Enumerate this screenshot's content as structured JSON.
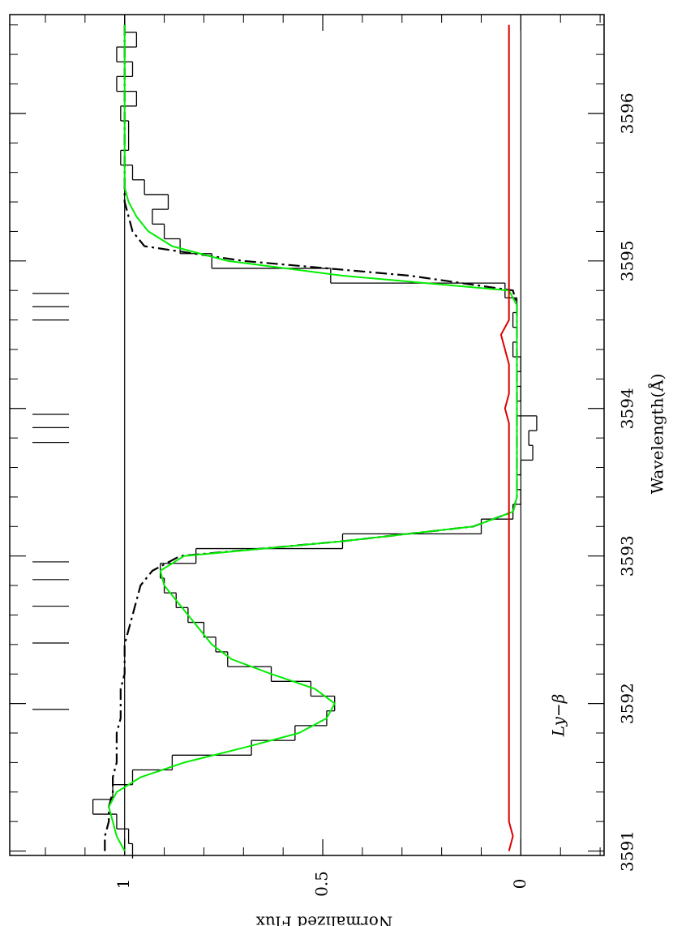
{
  "chart_data": {
    "type": "line",
    "xlabel": "Wavelength(Å)",
    "ylabel": "Normalized Flux",
    "annotation": "Ly−β",
    "xlim": [
      3590.97,
      3596.67
    ],
    "xticks": [
      3591,
      3592,
      3593,
      3594,
      3595,
      3596
    ],
    "xminorticks": [
      3591.2,
      3591.4,
      3591.6,
      3591.8,
      3592.2,
      3592.4,
      3592.6,
      3592.8,
      3593.2,
      3593.4,
      3593.6,
      3593.8,
      3594.2,
      3594.4,
      3594.6,
      3594.8,
      3595.2,
      3595.4,
      3595.6,
      3595.8,
      3596.2,
      3596.4,
      3596.6
    ],
    "ylim": [
      -0.21,
      1.29
    ],
    "yticks": [
      1,
      0.5,
      0
    ],
    "yminorticks": [
      1.2,
      1.1,
      0.9,
      0.8,
      0.7,
      0.6,
      0.4,
      0.3,
      0.2,
      0.1,
      -0.1,
      -0.2
    ],
    "hlines": [
      1,
      0
    ],
    "component_lines": [
      3591.96,
      3592.41,
      3592.66,
      3592.84,
      3592.96,
      3593.77,
      3593.87,
      3593.96,
      3594.6,
      3594.69,
      3594.78
    ],
    "x": [
      3591.0,
      3591.1,
      3591.2,
      3591.3,
      3591.4,
      3591.5,
      3591.6,
      3591.7,
      3591.8,
      3591.9,
      3592.0,
      3592.1,
      3592.2,
      3592.3,
      3592.4,
      3592.5,
      3592.6,
      3592.7,
      3592.8,
      3592.9,
      3593.0,
      3593.1,
      3593.2,
      3593.3,
      3593.4,
      3593.5,
      3593.6,
      3593.7,
      3593.8,
      3593.9,
      3594.0,
      3594.1,
      3594.2,
      3594.3,
      3594.4,
      3594.5,
      3594.6,
      3594.7,
      3594.8,
      3594.9,
      3595.0,
      3595.1,
      3595.2,
      3595.3,
      3595.4,
      3595.5,
      3595.6,
      3595.7,
      3595.8,
      3595.9,
      3596.0,
      3596.1,
      3596.2,
      3596.3,
      3596.4,
      3596.5,
      3596.6
    ],
    "series": [
      {
        "style": "histogram",
        "color": "#000000",
        "values": [
          0.98,
          0.99,
          1.02,
          1.08,
          1.03,
          0.98,
          0.88,
          0.68,
          0.57,
          0.49,
          0.47,
          0.53,
          0.63,
          0.74,
          0.77,
          0.8,
          0.84,
          0.87,
          0.9,
          0.91,
          0.82,
          0.45,
          0.1,
          0.02,
          0.0,
          0.01,
          0.0,
          -0.03,
          -0.02,
          -0.04,
          0.01,
          0.0,
          0.01,
          0.0,
          0.02,
          0.01,
          0.02,
          0.01,
          0.04,
          0.48,
          0.78,
          0.86,
          0.9,
          0.93,
          0.89,
          0.95,
          0.98,
          1.01,
          0.99,
          0.99,
          1.01,
          0.97,
          1.02,
          0.98,
          1.02,
          0.97,
          1.0
        ]
      },
      {
        "style": "dashdot",
        "color": "#000000",
        "values": [
          1.05,
          1.05,
          1.04,
          1.04,
          1.03,
          1.03,
          1.02,
          1.02,
          1.02,
          1.01,
          1.01,
          1.01,
          1.0,
          1.0,
          1.0,
          0.99,
          0.98,
          0.97,
          0.96,
          0.93,
          0.86,
          0.45,
          0.12,
          0.02,
          0.01,
          0.01,
          0.01,
          0.01,
          0.01,
          0.01,
          0.01,
          0.01,
          0.01,
          0.01,
          0.01,
          0.01,
          0.01,
          0.01,
          0.02,
          0.28,
          0.7,
          0.95,
          0.98,
          0.99,
          1.0,
          1.0,
          1.0,
          1.0,
          1.0,
          1.0,
          1.0,
          1.0,
          1.0,
          1.0,
          1.0,
          1.0,
          1.0
        ]
      },
      {
        "style": "solid",
        "color": "#00ee00",
        "values": [
          1.0,
          1.02,
          1.03,
          1.04,
          1.02,
          0.96,
          0.85,
          0.7,
          0.56,
          0.49,
          0.47,
          0.52,
          0.63,
          0.73,
          0.78,
          0.81,
          0.84,
          0.87,
          0.9,
          0.91,
          0.85,
          0.45,
          0.12,
          0.02,
          0.01,
          0.01,
          0.01,
          0.01,
          0.01,
          0.01,
          0.01,
          0.01,
          0.01,
          0.01,
          0.01,
          0.01,
          0.01,
          0.01,
          0.03,
          0.45,
          0.74,
          0.88,
          0.94,
          0.97,
          0.99,
          1.0,
          1.0,
          1.0,
          1.0,
          1.0,
          1.0,
          1.0,
          1.0,
          1.0,
          1.0,
          1.0,
          1.0
        ]
      },
      {
        "style": "solid",
        "color": "#dd0000",
        "values": [
          0.03,
          0.02,
          0.03,
          0.03,
          0.03,
          0.03,
          0.03,
          0.03,
          0.03,
          0.03,
          0.03,
          0.03,
          0.03,
          0.03,
          0.03,
          0.03,
          0.03,
          0.03,
          0.03,
          0.03,
          0.03,
          0.03,
          0.03,
          0.03,
          0.03,
          0.03,
          0.03,
          0.03,
          0.03,
          0.03,
          0.04,
          0.03,
          0.03,
          0.03,
          0.04,
          0.05,
          0.03,
          0.03,
          0.03,
          0.03,
          0.03,
          0.03,
          0.03,
          0.03,
          0.03,
          0.03,
          0.03,
          0.03,
          0.03,
          0.03,
          0.03,
          0.03,
          0.03,
          0.03,
          0.03,
          0.03,
          0.03
        ]
      }
    ]
  }
}
